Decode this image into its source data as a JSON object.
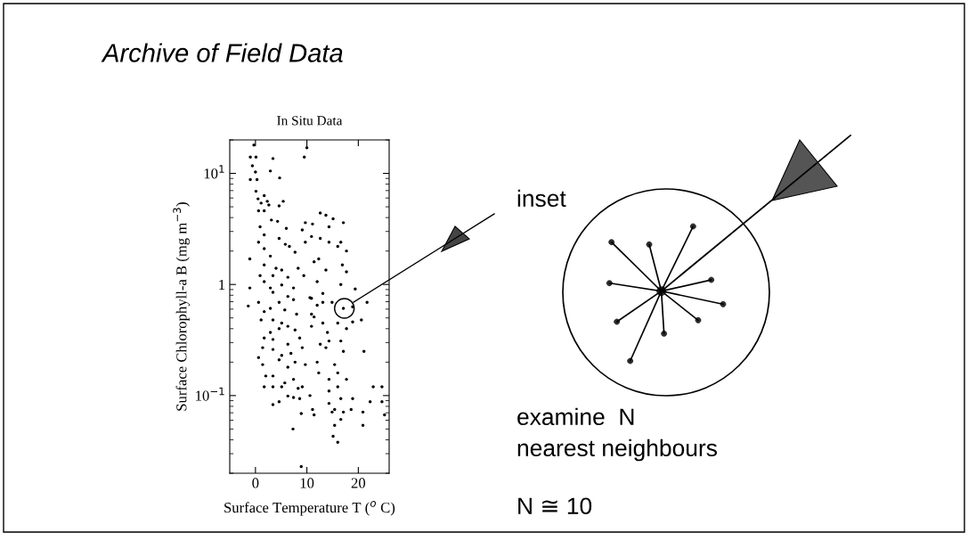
{
  "chart_data": {
    "type": "scatter",
    "title": "Archive of Field Data",
    "subtitle": "In Situ Data",
    "xlabel": "Surface Temperature T ($^{o}$ C)",
    "ylabel": "Surface Chlorophyll-a B (mg m$^{−3}$)",
    "color": "#000000",
    "marker": "circle",
    "log": "y",
    "xlim": [
      -5,
      26
    ],
    "ylim": [
      0.02,
      20
    ],
    "xticks": [
      0,
      10,
      20
    ],
    "yticks": [
      {
        "value": 0.1,
        "label": "10$^{−1}$"
      },
      1,
      {
        "value": 10,
        "label": "10$^{1}$"
      }
    ],
    "x": [
      -0.3,
      10.0,
      9.5,
      -1.0,
      0.1,
      3.4,
      -0.6,
      2.9,
      0.0,
      -1.0,
      0.3,
      4.7,
      0.1,
      1.7,
      0.5,
      2.3,
      5.4,
      1.1,
      2.6,
      4.6,
      0.6,
      1.7,
      12.6,
      13.7,
      3.1,
      4.3,
      9.7,
      11.1,
      15.1,
      17.1,
      14.3,
      0.9,
      6.0,
      9.1,
      1.7,
      10.9,
      12.6,
      4.6,
      9.7,
      14.3,
      16.6,
      0.6,
      5.8,
      6.6,
      1.7,
      16.0,
      17.7,
      7.7,
      -1.1,
      2.9,
      12.3,
      11.4,
      16.9,
      17.7,
      1.7,
      4.0,
      5.1,
      3.4,
      0.9,
      8.3,
      13.7,
      9.4,
      6.3,
      -1.1,
      1.7,
      2.9,
      5.1,
      7.4,
      12.0,
      16.6,
      19.4,
      13.1,
      3.4,
      10.9,
      6.3,
      -1.4,
      0.6,
      1.7,
      2.9,
      4.6,
      5.7,
      7.4,
      10.6,
      12.0,
      13.1,
      10.9,
      14.9,
      17.1,
      18.9,
      21.7,
      1.1,
      3.4,
      5.1,
      6.3,
      8.0,
      11.4,
      13.1,
      16.0,
      17.7,
      2.9,
      4.6,
      7.7,
      10.9,
      14.0,
      1.7,
      3.4,
      6.3,
      8.6,
      12.6,
      14.3,
      16.6,
      18.9,
      20.6,
      1.4,
      3.4,
      5.1,
      6.9,
      9.1,
      13.7,
      17.1,
      21.1,
      0.6,
      4.6,
      6.3,
      7.7,
      9.7,
      12.0,
      15.4,
      1.4,
      2.0,
      3.4,
      5.7,
      7.4,
      9.1,
      12.3,
      14.3,
      16.0,
      17.7,
      3.4,
      5.1,
      1.7,
      8.3,
      10.6,
      14.3,
      16.0,
      16.6,
      18.9,
      22.9,
      24.6,
      22.3,
      24.6,
      3.4,
      4.6,
      6.3,
      7.4,
      8.6,
      11.1,
      14.3,
      15.4,
      17.1,
      18.6,
      20.9,
      8.9,
      11.4,
      14.9,
      15.4,
      16.6,
      20.9,
      25.1,
      7.3,
      15.1,
      16.0,
      8.9
    ],
    "values": [
      18,
      17,
      14,
      14,
      14,
      13.6,
      11.7,
      10.5,
      10.3,
      8.8,
      8.8,
      9.1,
      6.9,
      6.3,
      5.9,
      5.6,
      5.6,
      5.4,
      5.2,
      5.1,
      4.6,
      4.6,
      4.4,
      4.2,
      3.8,
      3.7,
      3.6,
      3.5,
      3.9,
      3.6,
      3.3,
      3.3,
      3.2,
      3.1,
      2.8,
      2.7,
      2.6,
      2.6,
      2.4,
      2.4,
      2.4,
      2.4,
      2.3,
      2.2,
      2.1,
      2.2,
      2.0,
      1.95,
      1.7,
      1.8,
      1.7,
      1.6,
      1.5,
      1.3,
      1.5,
      1.4,
      1.35,
      1.2,
      1.2,
      1.4,
      1.35,
      1.2,
      1.16,
      0.93,
      1.06,
      0.93,
      0.99,
      0.93,
      1.06,
      1.0,
      0.91,
      0.83,
      0.85,
      0.75,
      0.78,
      0.64,
      0.69,
      0.57,
      0.61,
      0.69,
      0.59,
      0.73,
      0.76,
      0.65,
      0.69,
      0.54,
      0.69,
      0.61,
      0.63,
      0.69,
      0.48,
      0.48,
      0.45,
      0.42,
      0.54,
      0.51,
      0.45,
      0.45,
      0.4,
      0.37,
      0.4,
      0.39,
      0.42,
      0.37,
      0.33,
      0.32,
      0.29,
      0.33,
      0.29,
      0.31,
      0.31,
      0.46,
      0.48,
      0.27,
      0.26,
      0.23,
      0.24,
      0.27,
      0.27,
      0.25,
      0.25,
      0.22,
      0.21,
      0.18,
      0.2,
      0.19,
      0.2,
      0.19,
      0.19,
      0.15,
      0.15,
      0.13,
      0.14,
      0.12,
      0.16,
      0.14,
      0.16,
      0.14,
      0.12,
      0.12,
      0.12,
      0.116,
      0.1,
      0.11,
      0.12,
      0.094,
      0.094,
      0.12,
      0.12,
      0.088,
      0.088,
      0.083,
      0.088,
      0.099,
      0.096,
      0.094,
      0.075,
      0.085,
      0.075,
      0.071,
      0.075,
      0.071,
      0.069,
      0.067,
      0.071,
      0.054,
      0.061,
      0.054,
      0.067,
      0.05,
      0.043,
      0.038,
      0.023
    ],
    "annotations": [
      "inset",
      "examine  N",
      "nearest neighbours",
      "N ≅ 10"
    ]
  }
}
